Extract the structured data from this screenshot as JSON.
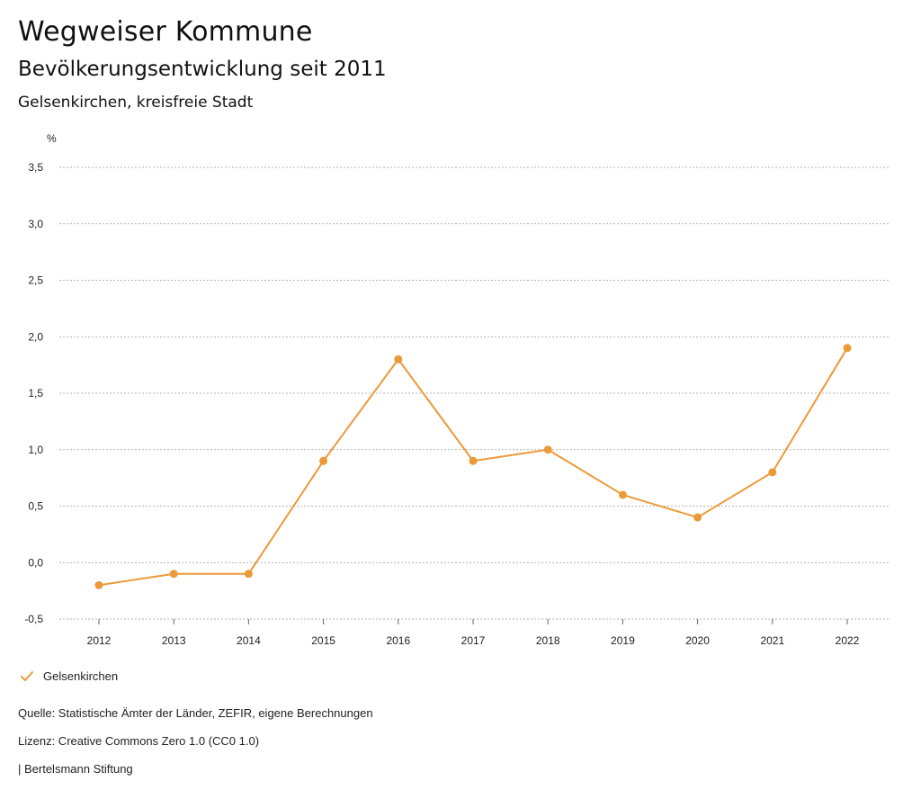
{
  "header": {
    "title": "Wegweiser Kommune",
    "subtitle": "Bevölkerungsentwicklung seit 2011",
    "region": "Gelsenkirchen, kreisfreie Stadt"
  },
  "chart_data": {
    "type": "line",
    "title": "Bevölkerungsentwicklung seit 2011",
    "xlabel": "",
    "ylabel": "%",
    "categories": [
      "2012",
      "2013",
      "2014",
      "2015",
      "2016",
      "2017",
      "2018",
      "2019",
      "2020",
      "2021",
      "2022"
    ],
    "series": [
      {
        "name": "Gelsenkirchen",
        "color": "#ec9a38",
        "values": [
          -0.2,
          -0.1,
          -0.1,
          0.9,
          1.8,
          0.9,
          1.0,
          0.6,
          0.4,
          0.8,
          1.9
        ]
      }
    ],
    "ylim": [
      -0.5,
      3.5
    ],
    "yticks": [
      -0.5,
      0.0,
      0.5,
      1.0,
      1.5,
      2.0,
      2.5,
      3.0,
      3.5
    ],
    "ytick_labels": [
      "-0,5",
      "0,0",
      "0,5",
      "1,0",
      "1,5",
      "2,0",
      "2,5",
      "3,0",
      "3,5"
    ],
    "grid": true,
    "legend_position": "bottom-left"
  },
  "legend": {
    "label": "Gelsenkirchen",
    "icon": "check-icon"
  },
  "footer": {
    "source": "Quelle: Statistische Ämter der Länder, ZEFIR, eigene Berechnungen",
    "license": "Lizenz: Creative Commons Zero 1.0 (CC0 1.0)",
    "publisher": "| Bertelsmann Stiftung"
  }
}
